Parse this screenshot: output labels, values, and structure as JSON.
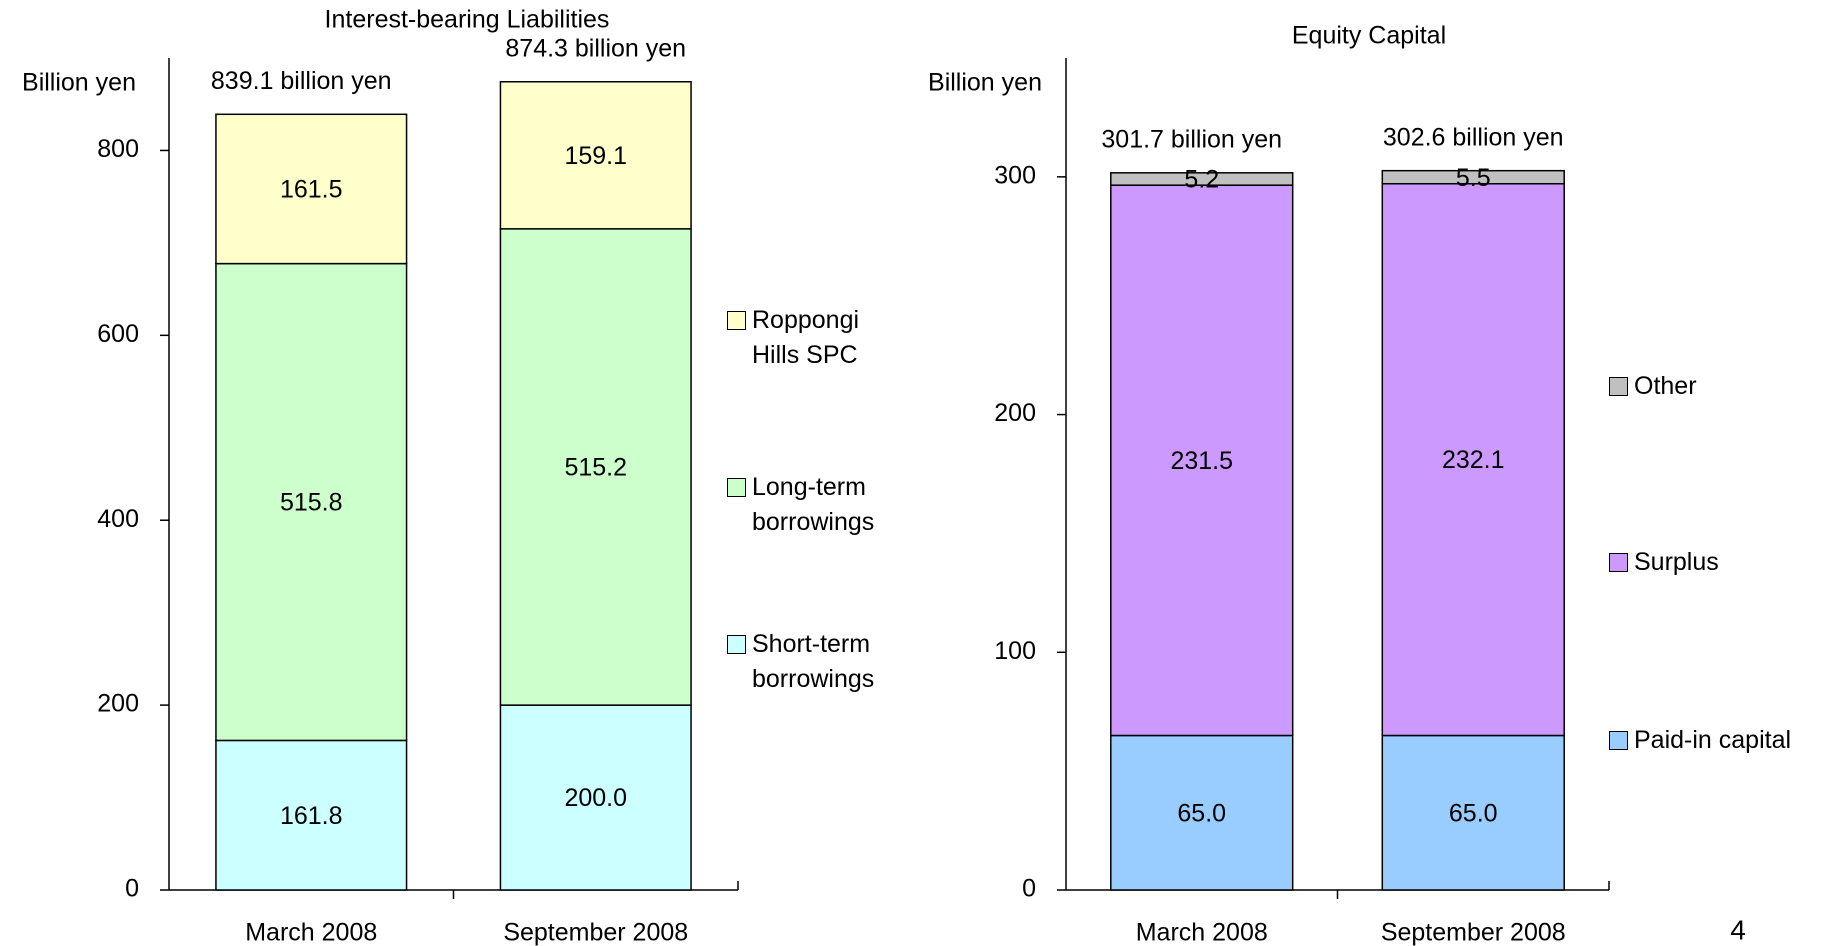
{
  "chart_data": [
    {
      "type": "stacked_bar",
      "title": "Interest-bearing Liabilities",
      "y_label": "Billion yen",
      "categories": [
        "March 2008",
        "September 2008"
      ],
      "totals": [
        "839.1 billion yen",
        "874.3 billion yen"
      ],
      "series": [
        {
          "name": "Short-term borrowings",
          "color": "#ccffff",
          "values": [
            161.8,
            200.0
          ],
          "value_labels": [
            "161.8",
            "200.0"
          ]
        },
        {
          "name": "Long-term borrowings",
          "color": "#ccffcc",
          "values": [
            515.8,
            515.2
          ]
        },
        {
          "name": "Roppongi Hills SPC",
          "color": "#ffffcc",
          "values": [
            161.5,
            159.1
          ]
        }
      ],
      "ylim": [
        0,
        900
      ],
      "yticks": [
        0,
        200,
        400,
        600,
        800
      ],
      "legend": "right"
    },
    {
      "type": "stacked_bar",
      "title": "Equity Capital",
      "y_label": "Billion yen",
      "categories": [
        "March 2008",
        "September 2008"
      ],
      "totals": [
        "301.7 billion yen",
        "302.6 billion yen"
      ],
      "series": [
        {
          "name": "Paid-in capital",
          "color": "#99ccff",
          "values": [
            65.0,
            65.0
          ],
          "value_labels": [
            "65.0",
            "65.0"
          ]
        },
        {
          "name": "Surplus",
          "color": "#cc99ff",
          "values": [
            231.5,
            232.1
          ]
        },
        {
          "name": "Other",
          "color": "#c0c0c0",
          "values": [
            5.2,
            5.5
          ]
        }
      ],
      "ylim": [
        0,
        350
      ],
      "yticks": [
        0,
        100,
        200,
        300
      ],
      "legend": "right"
    }
  ],
  "page_number": "4"
}
